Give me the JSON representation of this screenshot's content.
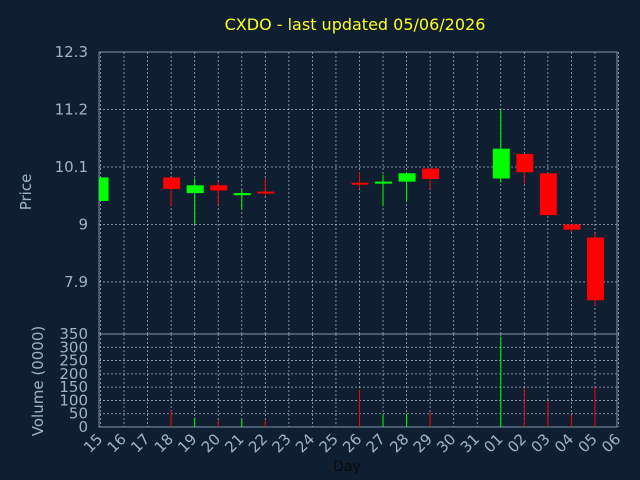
{
  "chart_data": {
    "type": "candlestick",
    "title": "CXDO - last updated 05/06/2026",
    "xlabel": "Day",
    "ylabel": "Price",
    "volume_label": "Volume (0000)",
    "x_categories": [
      "15",
      "16",
      "17",
      "18",
      "19",
      "20",
      "21",
      "22",
      "23",
      "24",
      "25",
      "26",
      "27",
      "28",
      "29",
      "30",
      "31",
      "01",
      "02",
      "03",
      "04",
      "05",
      "06"
    ],
    "price_ticks": [
      "7.9",
      "9",
      "10.1",
      "11.2",
      "12.3"
    ],
    "price_range": [
      7.0,
      12.3
    ],
    "volume_ticks": [
      "0",
      "50",
      "100",
      "150",
      "200",
      "250",
      "300",
      "350"
    ],
    "volume_range": [
      0,
      350
    ],
    "grid": true,
    "up_color": "#00ff00",
    "down_color": "#ff0000",
    "candles": [
      {
        "x": 0.0,
        "open": 9.45,
        "close": 9.9,
        "high": 9.9,
        "low": 9.45
      },
      {
        "x": 3.0,
        "open": 9.9,
        "close": 9.68,
        "high": 9.9,
        "low": 9.35
      },
      {
        "x": 4.0,
        "open": 9.6,
        "close": 9.75,
        "high": 9.88,
        "low": 9.0
      },
      {
        "x": 5.0,
        "open": 9.75,
        "close": 9.65,
        "high": 9.82,
        "low": 9.38
      },
      {
        "x": 6.0,
        "open": 9.56,
        "close": 9.6,
        "high": 9.66,
        "low": 9.3
      },
      {
        "x": 7.0,
        "open": 9.63,
        "close": 9.6,
        "high": 9.88,
        "low": 9.55
      },
      {
        "x": 11.0,
        "open": 9.8,
        "close": 9.78,
        "high": 10.0,
        "low": 9.68
      },
      {
        "x": 12.0,
        "open": 9.8,
        "close": 9.82,
        "high": 9.95,
        "low": 9.35
      },
      {
        "x": 13.0,
        "open": 9.82,
        "close": 9.98,
        "high": 9.98,
        "low": 9.45
      },
      {
        "x": 14.0,
        "open": 10.07,
        "close": 9.87,
        "high": 10.07,
        "low": 9.68
      },
      {
        "x": 17.0,
        "open": 9.88,
        "close": 10.45,
        "high": 11.2,
        "low": 9.8
      },
      {
        "x": 18.0,
        "open": 10.35,
        "close": 10.0,
        "high": 10.35,
        "low": 9.78
      },
      {
        "x": 19.0,
        "open": 9.98,
        "close": 9.18,
        "high": 9.98,
        "low": 9.18
      },
      {
        "x": 20.0,
        "open": 9.0,
        "close": 8.9,
        "high": 9.0,
        "low": 8.85
      },
      {
        "x": 21.0,
        "open": 8.75,
        "close": 7.55,
        "high": 8.82,
        "low": 7.45
      }
    ],
    "volumes": [
      {
        "x": 3.0,
        "value": 60,
        "dir": "down"
      },
      {
        "x": 4.0,
        "value": 35,
        "dir": "up"
      },
      {
        "x": 5.0,
        "value": 25,
        "dir": "down"
      },
      {
        "x": 6.0,
        "value": 30,
        "dir": "up"
      },
      {
        "x": 7.0,
        "value": 25,
        "dir": "down"
      },
      {
        "x": 11.0,
        "value": 140,
        "dir": "down"
      },
      {
        "x": 12.0,
        "value": 45,
        "dir": "up"
      },
      {
        "x": 13.0,
        "value": 50,
        "dir": "up"
      },
      {
        "x": 14.0,
        "value": 55,
        "dir": "down"
      },
      {
        "x": 17.0,
        "value": 340,
        "dir": "up"
      },
      {
        "x": 18.0,
        "value": 145,
        "dir": "down"
      },
      {
        "x": 19.0,
        "value": 95,
        "dir": "down"
      },
      {
        "x": 20.0,
        "value": 45,
        "dir": "down"
      },
      {
        "x": 21.0,
        "value": 150,
        "dir": "down"
      }
    ]
  }
}
